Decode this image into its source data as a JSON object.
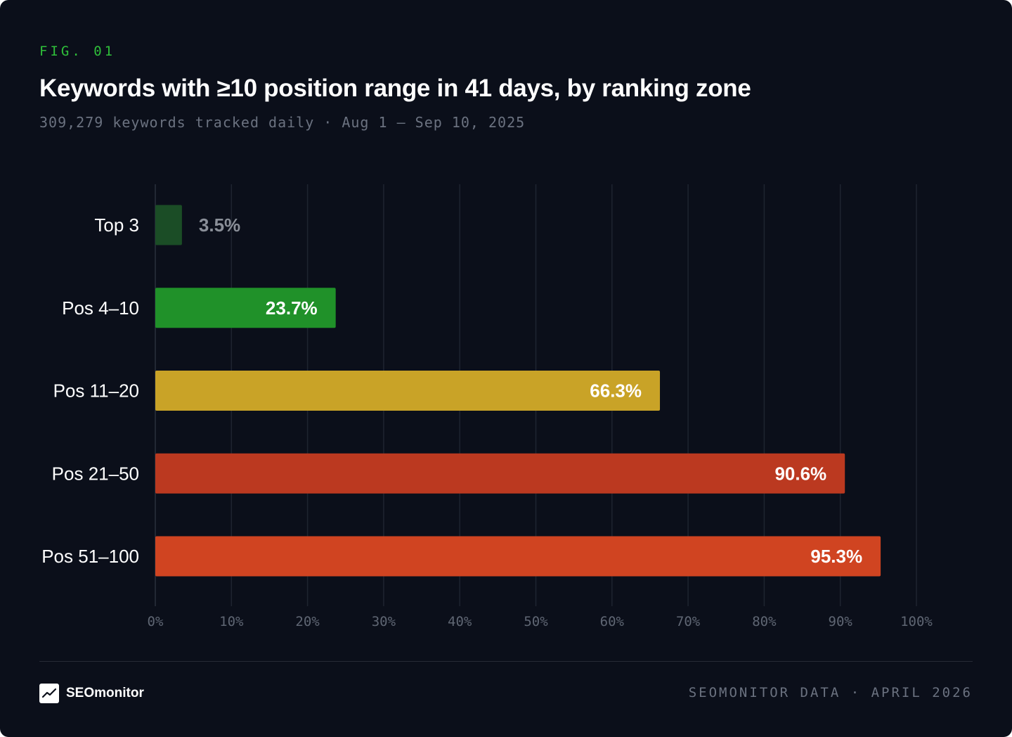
{
  "header": {
    "fig_tag": "FIG. 01",
    "title": "Keywords with ≥10 position range in 41 days, by ranking zone",
    "subtitle": "309,279 keywords tracked daily · Aug 1 – Sep 10, 2025"
  },
  "chart_data": {
    "type": "bar",
    "orientation": "horizontal",
    "title": "Keywords with ≥10 position range in 41 days, by ranking zone",
    "subtitle": "309,279 keywords tracked daily · Aug 1 – Sep 10, 2025",
    "categories": [
      "Top 3",
      "Pos 4–10",
      "Pos 11–20",
      "Pos 21–50",
      "Pos 51–100"
    ],
    "values": [
      3.5,
      23.7,
      66.3,
      90.6,
      95.3
    ],
    "value_labels": [
      "3.5%",
      "23.7%",
      "66.3%",
      "90.6%",
      "95.3%"
    ],
    "colors": [
      "#1b4d26",
      "#209129",
      "#c9a327",
      "#bb3920",
      "#d04421"
    ],
    "xlim": [
      0,
      100
    ],
    "x_ticks": [
      0,
      10,
      20,
      30,
      40,
      50,
      60,
      70,
      80,
      90,
      100
    ],
    "x_tick_labels": [
      "0%",
      "10%",
      "20%",
      "30%",
      "40%",
      "50%",
      "60%",
      "70%",
      "80%",
      "90%",
      "100%"
    ],
    "grid": true,
    "xlabel": "",
    "ylabel": ""
  },
  "footer": {
    "brand": "SEOmonitor",
    "logo_icon": "trend-line-icon",
    "source": "SEOMONITOR DATA · APRIL 2026"
  }
}
